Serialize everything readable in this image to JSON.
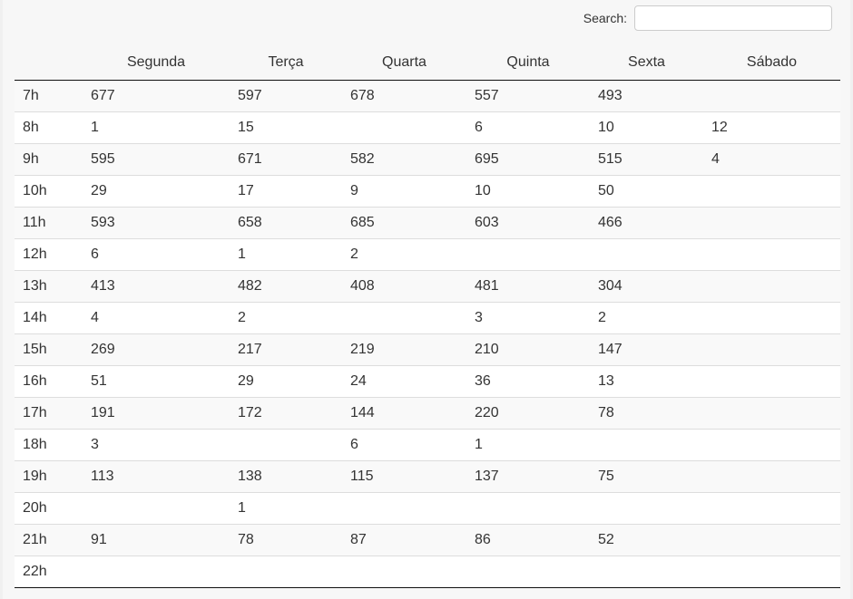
{
  "search": {
    "label": "Search:",
    "value": "",
    "placeholder": ""
  },
  "table": {
    "headers": [
      "",
      "Segunda",
      "Terça",
      "Quarta",
      "Quinta",
      "Sexta",
      "Sábado"
    ],
    "rows": [
      [
        "7h",
        "677",
        "597",
        "678",
        "557",
        "493",
        ""
      ],
      [
        "8h",
        "1",
        "15",
        "",
        "6",
        "10",
        "12"
      ],
      [
        "9h",
        "595",
        "671",
        "582",
        "695",
        "515",
        "4"
      ],
      [
        "10h",
        "29",
        "17",
        "9",
        "10",
        "50",
        ""
      ],
      [
        "11h",
        "593",
        "658",
        "685",
        "603",
        "466",
        ""
      ],
      [
        "12h",
        "6",
        "1",
        "2",
        "",
        "",
        ""
      ],
      [
        "13h",
        "413",
        "482",
        "408",
        "481",
        "304",
        ""
      ],
      [
        "14h",
        "4",
        "2",
        "",
        "3",
        "2",
        ""
      ],
      [
        "15h",
        "269",
        "217",
        "219",
        "210",
        "147",
        ""
      ],
      [
        "16h",
        "51",
        "29",
        "24",
        "36",
        "13",
        ""
      ],
      [
        "17h",
        "191",
        "172",
        "144",
        "220",
        "78",
        ""
      ],
      [
        "18h",
        "3",
        "",
        "6",
        "1",
        "",
        ""
      ],
      [
        "19h",
        "113",
        "138",
        "115",
        "137",
        "75",
        ""
      ],
      [
        "20h",
        "",
        "1",
        "",
        "",
        "",
        ""
      ],
      [
        "21h",
        "91",
        "78",
        "87",
        "86",
        "52",
        ""
      ],
      [
        "22h",
        "",
        "",
        "",
        "",
        "",
        ""
      ]
    ]
  }
}
